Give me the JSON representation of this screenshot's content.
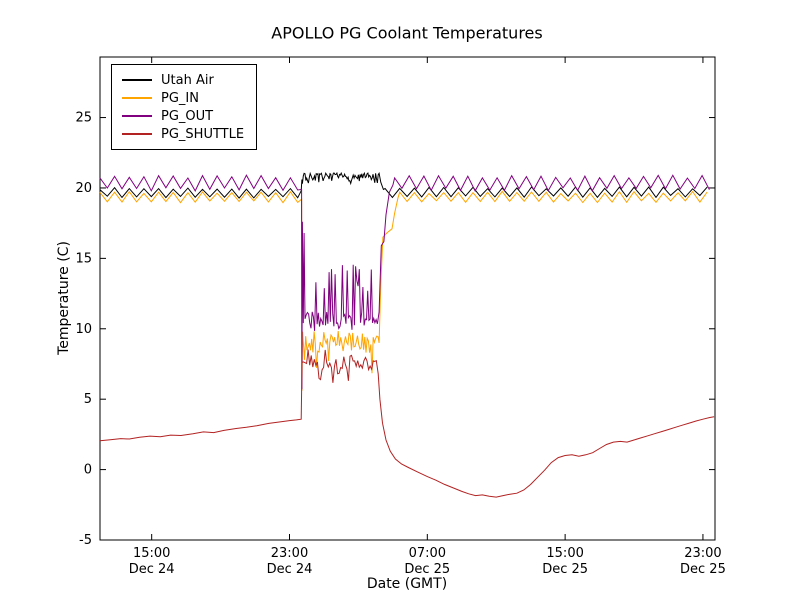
{
  "chart_data": {
    "type": "line",
    "title": "APOLLO PG Coolant Temperatures",
    "xlabel": "Date (GMT)",
    "ylabel": "Temperature (C)",
    "x_unit": "hours since Dec 24 00:00 GMT",
    "xlim": [
      12,
      47.7
    ],
    "ylim": [
      -5,
      29.3
    ],
    "yticks": [
      -5,
      0,
      5,
      10,
      15,
      20,
      25
    ],
    "xticks": [
      {
        "x": 15,
        "time": "15:00",
        "date": "Dec 24"
      },
      {
        "x": 23,
        "time": "23:00",
        "date": "Dec 24"
      },
      {
        "x": 31,
        "time": "07:00",
        "date": "Dec 25"
      },
      {
        "x": 39,
        "time": "15:00",
        "date": "Dec 25"
      },
      {
        "x": 47,
        "time": "23:00",
        "date": "Dec 25"
      }
    ],
    "grid": false,
    "legend": {
      "position": "upper-left",
      "entries": [
        "Utah Air",
        "PG_IN",
        "PG_OUT",
        "PG_SHUTTLE"
      ]
    },
    "event_window_hours": [
      23.7,
      28.2
    ],
    "series": [
      {
        "name": "Utah Air",
        "color": "#000000",
        "seed": 7,
        "segments": [
          {
            "type": "saw",
            "from": 12,
            "to": 23.65,
            "base": 19.65,
            "amp": 0.3,
            "period": 0.85
          },
          {
            "type": "pts",
            "pts": [
              [
                23.68,
                19.8
              ],
              [
                23.72,
                20.6
              ]
            ]
          },
          {
            "type": "spiky",
            "from": 23.75,
            "to": 28.25,
            "step": 0.05,
            "base": 20.78,
            "jitter": 0.28,
            "up": 0.5,
            "p_up": 0.06,
            "dn": 0.5,
            "p_dn": 0.06
          },
          {
            "type": "pts",
            "pts": [
              [
                28.3,
                20.4
              ],
              [
                28.45,
                19.9
              ]
            ]
          },
          {
            "type": "saw",
            "from": 28.55,
            "to": 47.65,
            "base": 19.7,
            "amp": 0.3,
            "period": 0.85
          }
        ]
      },
      {
        "name": "PG_IN",
        "color": "#ffa500",
        "seed": 11,
        "segments": [
          {
            "type": "saw",
            "from": 12,
            "to": 23.65,
            "base": 19.35,
            "amp": 0.33,
            "period": 0.85
          },
          {
            "type": "pts",
            "pts": [
              [
                23.7,
                19.2
              ],
              [
                23.72,
                5.6
              ],
              [
                23.76,
                9.8
              ]
            ]
          },
          {
            "type": "spiky",
            "from": 23.8,
            "to": 28.15,
            "step": 0.07,
            "base": 8.9,
            "jitter": 0.6,
            "up": 1.0,
            "p_up": 0.15,
            "dn": 2.3,
            "p_dn": 0.14
          },
          {
            "type": "pts",
            "pts": [
              [
                28.2,
                9.0
              ],
              [
                28.3,
                13.2
              ],
              [
                28.42,
                16.5
              ],
              [
                28.65,
                16.8
              ],
              [
                28.95,
                17.1
              ],
              [
                29.1,
                18.2
              ],
              [
                29.3,
                19.3
              ]
            ]
          },
          {
            "type": "saw",
            "from": 29.4,
            "to": 47.65,
            "base": 19.35,
            "amp": 0.33,
            "period": 0.85
          }
        ]
      },
      {
        "name": "PG_OUT",
        "color": "#800080",
        "seed": 23,
        "segments": [
          {
            "type": "saw",
            "from": 12,
            "to": 23.65,
            "base": 20.35,
            "amp": 0.45,
            "period": 0.85
          },
          {
            "type": "pts",
            "pts": [
              [
                23.7,
                19.9
              ],
              [
                23.72,
                5.7
              ],
              [
                23.75,
                17.6
              ],
              [
                23.8,
                10.4
              ],
              [
                23.85,
                16.8
              ]
            ]
          },
          {
            "type": "spiky",
            "from": 23.9,
            "to": 28.15,
            "step": 0.07,
            "base": 10.7,
            "jitter": 0.55,
            "up": 3.9,
            "p_up": 0.22,
            "dn": 0.9,
            "p_dn": 0.1
          },
          {
            "type": "pts",
            "pts": [
              [
                28.2,
                11.2
              ],
              [
                28.33,
                15.9
              ],
              [
                28.48,
                16.2
              ],
              [
                28.6,
                18.1
              ],
              [
                28.8,
                19.7
              ],
              [
                29.0,
                20.2
              ]
            ]
          },
          {
            "type": "saw",
            "from": 29.1,
            "to": 47.65,
            "base": 20.35,
            "amp": 0.45,
            "period": 0.85
          }
        ]
      },
      {
        "name": "PG_SHUTTLE",
        "color": "#b22222",
        "seed": 41,
        "segments": [
          {
            "type": "pts",
            "pts": [
              [
                12,
                2.05
              ],
              [
                12.6,
                2.12
              ],
              [
                13.2,
                2.2
              ],
              [
                13.7,
                2.17
              ],
              [
                14.3,
                2.3
              ],
              [
                14.9,
                2.38
              ],
              [
                15.5,
                2.33
              ],
              [
                16.1,
                2.45
              ],
              [
                16.7,
                2.42
              ],
              [
                17.4,
                2.55
              ],
              [
                18.0,
                2.68
              ],
              [
                18.6,
                2.63
              ],
              [
                19.2,
                2.78
              ],
              [
                19.9,
                2.92
              ],
              [
                20.5,
                3.0
              ],
              [
                21.1,
                3.12
              ],
              [
                21.8,
                3.28
              ],
              [
                22.4,
                3.38
              ],
              [
                23.0,
                3.48
              ],
              [
                23.4,
                3.53
              ],
              [
                23.68,
                3.58
              ],
              [
                23.7,
                5.5
              ]
            ]
          },
          {
            "type": "spiky",
            "from": 23.72,
            "to": 28.1,
            "step": 0.09,
            "base": 7.6,
            "jitter": 0.55,
            "up": 1.1,
            "p_up": 0.12,
            "dn": 1.7,
            "p_dn": 0.12
          },
          {
            "type": "pts",
            "pts": [
              [
                28.15,
                6.8
              ],
              [
                28.25,
                5.0
              ],
              [
                28.4,
                3.3
              ],
              [
                28.6,
                2.1
              ],
              [
                28.85,
                1.3
              ],
              [
                29.15,
                0.75
              ],
              [
                29.5,
                0.4
              ],
              [
                29.9,
                0.15
              ],
              [
                30.4,
                -0.15
              ],
              [
                31.0,
                -0.5
              ],
              [
                31.5,
                -0.75
              ],
              [
                32.0,
                -1.05
              ],
              [
                32.5,
                -1.3
              ],
              [
                33.0,
                -1.55
              ],
              [
                33.4,
                -1.72
              ],
              [
                33.8,
                -1.85
              ],
              [
                34.2,
                -1.8
              ],
              [
                34.6,
                -1.9
              ],
              [
                35.0,
                -1.95
              ],
              [
                35.4,
                -1.85
              ],
              [
                35.8,
                -1.75
              ],
              [
                36.2,
                -1.68
              ],
              [
                36.6,
                -1.45
              ],
              [
                37.0,
                -1.05
              ],
              [
                37.4,
                -0.55
              ],
              [
                37.8,
                -0.05
              ],
              [
                38.2,
                0.5
              ],
              [
                38.6,
                0.85
              ],
              [
                39.0,
                1.0
              ],
              [
                39.4,
                1.05
              ],
              [
                39.8,
                0.95
              ],
              [
                40.2,
                1.05
              ],
              [
                40.6,
                1.2
              ],
              [
                41.0,
                1.5
              ],
              [
                41.4,
                1.78
              ],
              [
                41.8,
                1.95
              ],
              [
                42.2,
                2.0
              ],
              [
                42.6,
                1.95
              ],
              [
                43.0,
                2.1
              ],
              [
                43.4,
                2.25
              ],
              [
                43.8,
                2.4
              ],
              [
                44.2,
                2.55
              ],
              [
                44.6,
                2.7
              ],
              [
                45.0,
                2.85
              ],
              [
                45.4,
                3.0
              ],
              [
                45.8,
                3.15
              ],
              [
                46.2,
                3.3
              ],
              [
                46.6,
                3.45
              ],
              [
                47.0,
                3.58
              ],
              [
                47.4,
                3.7
              ],
              [
                47.65,
                3.75
              ]
            ]
          }
        ]
      }
    ]
  }
}
